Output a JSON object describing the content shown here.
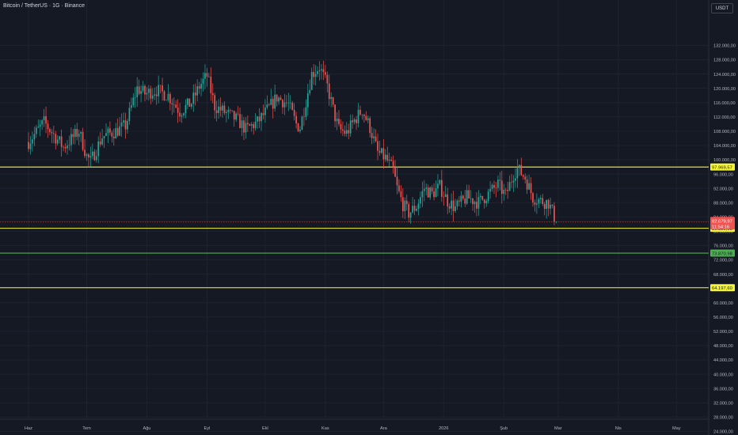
{
  "header": {
    "title": "Bitcoin / TetherUS · 1G · Binance",
    "currency": "USDT"
  },
  "colors": {
    "background": "#151924",
    "grid": "#1f2330",
    "axis_text": "#b2b5be",
    "up": "#26a69a",
    "down": "#ef5350",
    "level_yellow": "#f5f53a",
    "level_green": "#4caf50"
  },
  "chart_data": {
    "type": "candlestick",
    "ylim": [
      20000,
      134000
    ],
    "y_ticks": [
      24000,
      28000,
      32000,
      36000,
      40000,
      44000,
      48000,
      52000,
      56000,
      60000,
      64000,
      68000,
      72000,
      76000,
      80000,
      84000,
      88000,
      92000,
      96000,
      100000,
      104000,
      108000,
      112000,
      116000,
      120000,
      124000,
      128000,
      132000
    ],
    "y_tick_labels": [
      "24.000,00",
      "28.000,00",
      "32.000,00",
      "36.000,00",
      "40.000,00",
      "44.000,00",
      "48.000,00",
      "52.000,00",
      "56.000,00",
      "60.000,00",
      "64.000,00",
      "68.000,00",
      "72.000,00",
      "76.000,00",
      "80.000,00",
      "84.000,00",
      "88.000,00",
      "92.000,00",
      "96.000,00",
      "100.000,00",
      "104.000,00",
      "108.000,00",
      "112.000,00",
      "116.000,00",
      "120.000,00",
      "124.000,00",
      "128.000,00",
      "132.000,00"
    ],
    "x_ticks": [
      "Haz",
      "Tem",
      "Ağu",
      "Eyl",
      "Ekl",
      "Kas",
      "Ara",
      "2026",
      "Şub",
      "Mar",
      "Nis",
      "May"
    ],
    "month_days": [
      30,
      31,
      31,
      30,
      31,
      30,
      31,
      31,
      28,
      31,
      30
    ],
    "price_path": [
      [
        0,
        105000
      ],
      [
        8,
        110500
      ],
      [
        18,
        103500
      ],
      [
        26,
        108000
      ],
      [
        30,
        101000
      ],
      [
        32,
        99500
      ],
      [
        38,
        106500
      ],
      [
        45,
        108000
      ],
      [
        50,
        109500
      ],
      [
        56,
        120000
      ],
      [
        60,
        118500
      ],
      [
        66,
        119500
      ],
      [
        72,
        118000
      ],
      [
        78,
        113500
      ],
      [
        84,
        116000
      ],
      [
        88,
        120500
      ],
      [
        92,
        123500
      ],
      [
        96,
        115000
      ],
      [
        102,
        113000
      ],
      [
        108,
        111000
      ],
      [
        112,
        108500
      ],
      [
        118,
        110500
      ],
      [
        124,
        114500
      ],
      [
        128,
        117500
      ],
      [
        134,
        115500
      ],
      [
        138,
        110000
      ],
      [
        140,
        109000
      ],
      [
        146,
        124000
      ],
      [
        150,
        126000
      ],
      [
        154,
        120500
      ],
      [
        158,
        112000
      ],
      [
        160,
        108500
      ],
      [
        164,
        107500
      ],
      [
        168,
        111000
      ],
      [
        172,
        114000
      ],
      [
        176,
        109000
      ],
      [
        180,
        102000
      ],
      [
        184,
        100500
      ],
      [
        188,
        97000
      ],
      [
        190,
        92000
      ],
      [
        193,
        87500
      ],
      [
        196,
        85000
      ],
      [
        200,
        87000
      ],
      [
        204,
        92000
      ],
      [
        208,
        90500
      ],
      [
        212,
        92500
      ],
      [
        216,
        88500
      ],
      [
        220,
        86500
      ],
      [
        226,
        89500
      ],
      [
        232,
        88000
      ],
      [
        238,
        91000
      ],
      [
        242,
        93000
      ],
      [
        246,
        90000
      ],
      [
        250,
        96000
      ],
      [
        252,
        97500
      ],
      [
        256,
        95000
      ],
      [
        260,
        89500
      ],
      [
        264,
        88500
      ],
      [
        268,
        88000
      ],
      [
        272,
        82679
      ]
    ],
    "candle_range": [
      4000,
      6500
    ],
    "levels": [
      {
        "value": 97969.57,
        "label": "97.969,57",
        "color": "#f5f53a"
      },
      {
        "value": 80829.03,
        "label": "80.829,03",
        "color": "#f5f53a"
      },
      {
        "value": 73870.98,
        "label": "73.870,98",
        "color": "#4caf50"
      },
      {
        "value": 64197.6,
        "label": "64.197,60",
        "color": "#f5f53a"
      }
    ],
    "last_price": {
      "value": 82679.97,
      "label": "82.679,97",
      "countdown": "11:54:16",
      "color": "#ef5350"
    },
    "grid": true
  }
}
